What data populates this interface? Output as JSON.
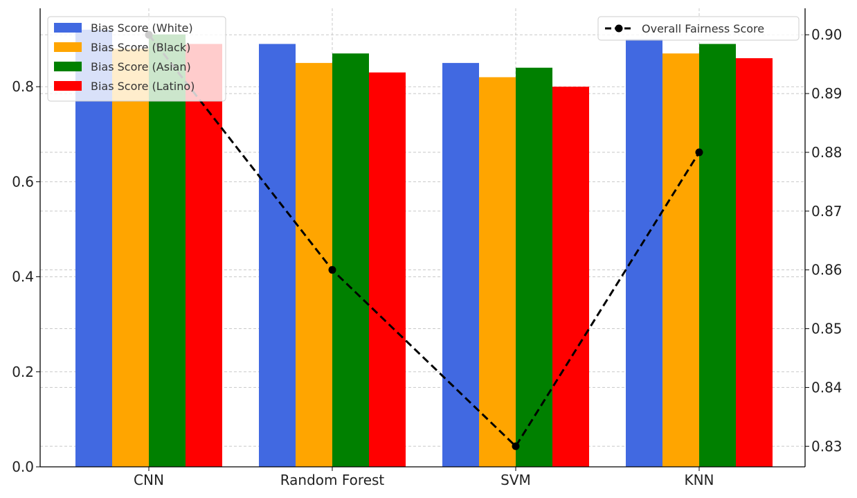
{
  "chart_data": {
    "type": "bar",
    "categories": [
      "CNN",
      "Random Forest",
      "SVM",
      "KNN"
    ],
    "series": [
      {
        "name": "Bias Score (White)",
        "color": "#4169E1",
        "values": [
          0.92,
          0.89,
          0.85,
          0.9
        ]
      },
      {
        "name": "Bias Score (Black)",
        "color": "#FFA500",
        "values": [
          0.88,
          0.85,
          0.82,
          0.87
        ]
      },
      {
        "name": "Bias Score (Asian)",
        "color": "#008000",
        "values": [
          0.91,
          0.87,
          0.84,
          0.89
        ]
      },
      {
        "name": "Bias Score (Latino)",
        "color": "#FF0000",
        "values": [
          0.89,
          0.83,
          0.8,
          0.86
        ]
      }
    ],
    "overlay_line": {
      "name": "Overall Fairness Score",
      "color": "#000000",
      "style": "dashed",
      "marker": "circle",
      "axis": "right",
      "values": [
        0.9,
        0.86,
        0.83,
        0.88
      ]
    },
    "left_axis": {
      "ylim": [
        0,
        0.965
      ],
      "ticks": [
        0.0,
        0.2,
        0.4,
        0.6,
        0.8
      ],
      "tick_labels": [
        "0.0",
        "0.2",
        "0.4",
        "0.6",
        "0.8"
      ]
    },
    "right_axis": {
      "ylim": [
        0.8265,
        0.9045
      ],
      "ticks": [
        0.83,
        0.84,
        0.85,
        0.86,
        0.87,
        0.88,
        0.89,
        0.9
      ],
      "tick_labels": [
        "0.83",
        "0.84",
        "0.85",
        "0.86",
        "0.87",
        "0.88",
        "0.89",
        "0.90"
      ]
    },
    "grid": true,
    "bar_legend_position": "top-left",
    "line_legend_position": "top-right",
    "title": "",
    "xlabel": "",
    "ylabel": ""
  }
}
